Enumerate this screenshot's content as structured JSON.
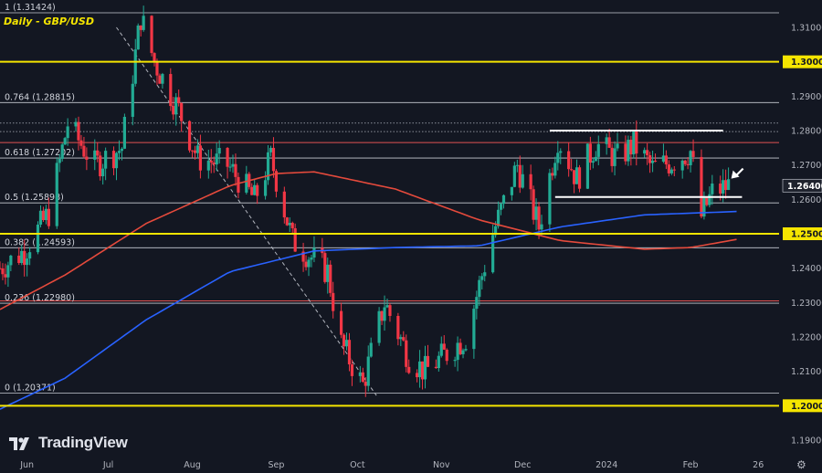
{
  "chart_data": {
    "type": "candlestick",
    "title": "Daily - GBP/USD",
    "y_range": [
      1.185,
      1.3165
    ],
    "y_ticks": [
      "1.31000",
      "1.30000",
      "1.29000",
      "1.28000",
      "1.27000",
      "1.26000",
      "1.25000",
      "1.24000",
      "1.23000",
      "1.22000",
      "1.21000",
      "1.20000",
      "1.19000"
    ],
    "x_labels": [
      "Jun",
      "Jul",
      "Aug",
      "Sep",
      "Oct",
      "Nov",
      "Dec",
      "2024",
      "Feb",
      "26"
    ],
    "x_label_dates": [
      "2023-06-01",
      "2023-07-01",
      "2023-08-01",
      "2023-09-01",
      "2023-10-01",
      "2023-11-01",
      "2023-12-01",
      "2024-01-01",
      "2024-02-01",
      "2024-02-26"
    ],
    "date_range": [
      "2023-05-22",
      "2024-03-03"
    ],
    "fib_levels": [
      {
        "label": "1 (1.31424)",
        "value": 1.31424
      },
      {
        "label": "0.764 (1.28815)",
        "value": 1.28815
      },
      {
        "label": "0.618 (1.27202)",
        "value": 1.27202
      },
      {
        "label": "0.5 (1.25898)",
        "value": 1.25898
      },
      {
        "label": "0.382 (1.24593)",
        "value": 1.24593
      },
      {
        "label": "0.236 (1.22980)",
        "value": 1.2298
      },
      {
        "label": "0 (1.20371)",
        "value": 1.20371
      }
    ],
    "horizontal_levels": [
      {
        "label": "1.30000",
        "value": 1.3
      },
      {
        "label": "1.25000",
        "value": 1.25
      },
      {
        "label": "1.20000",
        "value": 1.2
      }
    ],
    "current_price": {
      "label": "1.26400",
      "value": 1.264
    },
    "extra_lines": [
      {
        "value": 1.2765,
        "color": "#e05252"
      },
      {
        "value": 1.2822,
        "color": "#8a8f99"
      },
      {
        "value": 1.2797,
        "color": "#8a8f99"
      },
      {
        "value": 1.2305,
        "color": "#e05252"
      }
    ],
    "range_lines": [
      {
        "value": 1.28,
        "from": "2023-12-11",
        "to": "2024-02-13"
      },
      {
        "value": 1.2607,
        "from": "2023-12-13",
        "to": "2024-02-20"
      }
    ],
    "trend_line": {
      "from": [
        "2023-07-04",
        1.31
      ],
      "to": [
        "2023-10-08",
        1.203
      ]
    },
    "arrow_target": [
      "2024-02-15",
      1.2655
    ],
    "ohlc_key": [
      [
        "2023-05-22",
        1.24
      ],
      [
        "2023-05-31",
        1.245
      ],
      [
        "2023-06-09",
        1.256
      ],
      [
        "2023-06-16",
        1.282
      ],
      [
        "2023-06-26",
        1.27
      ],
      [
        "2023-07-06",
        1.275
      ],
      [
        "2023-07-13",
        1.313
      ],
      [
        "2023-07-18",
        1.3
      ],
      [
        "2023-07-27",
        1.286
      ],
      [
        "2023-08-03",
        1.272
      ],
      [
        "2023-08-14",
        1.27
      ],
      [
        "2023-08-24",
        1.26
      ],
      [
        "2023-08-30",
        1.272
      ],
      [
        "2023-09-07",
        1.248
      ],
      [
        "2023-09-20",
        1.239
      ],
      [
        "2023-09-25",
        1.218
      ],
      [
        "2023-10-03",
        1.206
      ],
      [
        "2023-10-11",
        1.23
      ],
      [
        "2023-10-20",
        1.214
      ],
      [
        "2023-10-26",
        1.21
      ],
      [
        "2023-11-01",
        1.214
      ],
      [
        "2023-11-10",
        1.22
      ],
      [
        "2023-11-20",
        1.25
      ],
      [
        "2023-11-29",
        1.27
      ],
      [
        "2023-12-07",
        1.252
      ],
      [
        "2023-12-14",
        1.278
      ],
      [
        "2023-12-21",
        1.266
      ],
      [
        "2023-12-28",
        1.276
      ],
      [
        "2024-01-05",
        1.272
      ],
      [
        "2024-01-11",
        1.276
      ],
      [
        "2024-01-18",
        1.269
      ],
      [
        "2024-01-25",
        1.271
      ],
      [
        "2024-02-01",
        1.274
      ],
      [
        "2024-02-05",
        1.255
      ],
      [
        "2024-02-09",
        1.262
      ],
      [
        "2024-02-15",
        1.264
      ]
    ],
    "sma200_key": [
      [
        "2023-05-22",
        1.199
      ],
      [
        "2023-06-15",
        1.208
      ],
      [
        "2023-07-15",
        1.225
      ],
      [
        "2023-08-15",
        1.239
      ],
      [
        "2023-09-15",
        1.245
      ],
      [
        "2023-10-15",
        1.246
      ],
      [
        "2023-11-15",
        1.2465
      ],
      [
        "2023-12-15",
        1.252
      ],
      [
        "2024-01-15",
        1.2555
      ],
      [
        "2024-02-19",
        1.2565
      ]
    ],
    "sma100_key": [
      [
        "2023-05-22",
        1.228
      ],
      [
        "2023-06-15",
        1.238
      ],
      [
        "2023-07-15",
        1.253
      ],
      [
        "2023-08-15",
        1.264
      ],
      [
        "2023-09-01",
        1.2675
      ],
      [
        "2023-09-15",
        1.268
      ],
      [
        "2023-10-15",
        1.263
      ],
      [
        "2023-11-15",
        1.254
      ],
      [
        "2023-12-15",
        1.248
      ],
      [
        "2024-01-15",
        1.2455
      ],
      [
        "2024-02-01",
        1.246
      ],
      [
        "2024-02-19",
        1.2485
      ]
    ],
    "colors": {
      "up": "#22ab94",
      "down": "#f23645",
      "sma200": "#2962ff",
      "sma100": "#e54a3c",
      "yellow": "#f5e500",
      "grid": "#d1d4dc",
      "white": "#ffffff"
    }
  },
  "branding": {
    "logo_text": "TradingView"
  }
}
